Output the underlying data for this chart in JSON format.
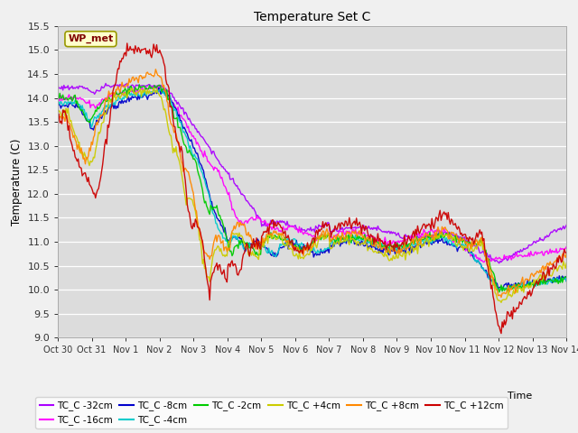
{
  "title": "Temperature Set C",
  "xlabel": "Time",
  "ylabel": "Temperature (C)",
  "ylim": [
    9.0,
    15.5
  ],
  "yticks": [
    9.0,
    9.5,
    10.0,
    10.5,
    11.0,
    11.5,
    12.0,
    12.5,
    13.0,
    13.5,
    14.0,
    14.5,
    15.0,
    15.5
  ],
  "xtick_labels": [
    "Oct 30",
    "Oct 31",
    "Nov 1",
    "Nov 2",
    "Nov 3",
    "Nov 4",
    "Nov 5",
    "Nov 6",
    "Nov 7",
    "Nov 8",
    "Nov 9",
    "Nov 10",
    "Nov 11",
    "Nov 12",
    "Nov 13",
    "Nov 14"
  ],
  "series": [
    {
      "name": "TC_C -32cm",
      "color": "#aa00ff",
      "lw": 1.0
    },
    {
      "name": "TC_C -16cm",
      "color": "#ff00ff",
      "lw": 1.0
    },
    {
      "name": "TC_C -8cm",
      "color": "#0000cc",
      "lw": 1.0
    },
    {
      "name": "TC_C -4cm",
      "color": "#00cccc",
      "lw": 1.0
    },
    {
      "name": "TC_C -2cm",
      "color": "#00cc00",
      "lw": 1.0
    },
    {
      "name": "TC_C +4cm",
      "color": "#cccc00",
      "lw": 1.0
    },
    {
      "name": "TC_C +8cm",
      "color": "#ff8800",
      "lw": 1.0
    },
    {
      "name": "TC_C +12cm",
      "color": "#cc0000",
      "lw": 1.0
    }
  ],
  "wp_met_label": "WP_met",
  "plot_bg_color": "#dcdcdc",
  "fig_bg_color": "#f0f0f0",
  "grid_color": "#ffffff"
}
